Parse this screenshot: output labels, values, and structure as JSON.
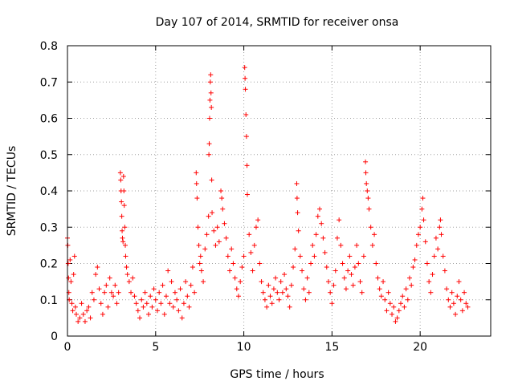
{
  "chart_data": {
    "type": "scatter",
    "title": "Day 107 of 2014, SRMTID for receiver onsa",
    "xlabel": "GPS time / hours",
    "ylabel": "SRMTID / TECUs",
    "xlim": [
      0,
      24
    ],
    "ylim": [
      0,
      0.8
    ],
    "xticks": [
      0,
      5,
      10,
      15,
      20
    ],
    "xtick_labels": [
      "0",
      "5",
      "10",
      "15",
      "20"
    ],
    "yticks": [
      0,
      0.1,
      0.2,
      0.3,
      0.4,
      0.5,
      0.6,
      0.7,
      0.8
    ],
    "ytick_labels": [
      "0",
      "0.1",
      "0.2",
      "0.3",
      "0.4",
      "0.5",
      "0.6",
      "0.7",
      "0.8"
    ],
    "grid": true,
    "marker": "plus",
    "color": "#ff0000",
    "series": [
      {
        "name": "SRMTID",
        "points": [
          [
            0.0,
            0.27
          ],
          [
            0.02,
            0.25
          ],
          [
            0.04,
            0.2
          ],
          [
            0.06,
            0.16
          ],
          [
            0.08,
            0.12
          ],
          [
            0.1,
            0.1
          ],
          [
            0.15,
            0.21
          ],
          [
            0.2,
            0.15
          ],
          [
            0.25,
            0.09
          ],
          [
            0.3,
            0.07
          ],
          [
            0.35,
            0.17
          ],
          [
            0.4,
            0.22
          ],
          [
            0.45,
            0.08
          ],
          [
            0.5,
            0.06
          ],
          [
            0.6,
            0.04
          ],
          [
            0.7,
            0.05
          ],
          [
            0.8,
            0.09
          ],
          [
            0.9,
            0.06
          ],
          [
            1.0,
            0.04
          ],
          [
            1.1,
            0.07
          ],
          [
            1.2,
            0.08
          ],
          [
            1.3,
            0.05
          ],
          [
            1.4,
            0.12
          ],
          [
            1.5,
            0.1
          ],
          [
            1.6,
            0.17
          ],
          [
            1.7,
            0.19
          ],
          [
            1.8,
            0.13
          ],
          [
            1.9,
            0.09
          ],
          [
            2.0,
            0.06
          ],
          [
            2.1,
            0.12
          ],
          [
            2.2,
            0.14
          ],
          [
            2.3,
            0.08
          ],
          [
            2.4,
            0.16
          ],
          [
            2.5,
            0.12
          ],
          [
            2.6,
            0.11
          ],
          [
            2.7,
            0.14
          ],
          [
            2.8,
            0.09
          ],
          [
            2.9,
            0.12
          ],
          [
            3.0,
            0.45
          ],
          [
            3.02,
            0.43
          ],
          [
            3.04,
            0.4
          ],
          [
            3.06,
            0.37
          ],
          [
            3.08,
            0.33
          ],
          [
            3.1,
            0.29
          ],
          [
            3.12,
            0.27
          ],
          [
            3.15,
            0.26
          ],
          [
            3.18,
            0.44
          ],
          [
            3.2,
            0.4
          ],
          [
            3.22,
            0.36
          ],
          [
            3.25,
            0.3
          ],
          [
            3.28,
            0.25
          ],
          [
            3.3,
            0.22
          ],
          [
            3.35,
            0.19
          ],
          [
            3.4,
            0.17
          ],
          [
            3.5,
            0.15
          ],
          [
            3.6,
            0.12
          ],
          [
            3.7,
            0.16
          ],
          [
            3.8,
            0.11
          ],
          [
            3.9,
            0.09
          ],
          [
            4.0,
            0.07
          ],
          [
            4.1,
            0.05
          ],
          [
            4.2,
            0.1
          ],
          [
            4.3,
            0.08
          ],
          [
            4.4,
            0.12
          ],
          [
            4.5,
            0.09
          ],
          [
            4.6,
            0.06
          ],
          [
            4.7,
            0.11
          ],
          [
            4.8,
            0.08
          ],
          [
            4.9,
            0.13
          ],
          [
            5.0,
            0.1
          ],
          [
            5.1,
            0.07
          ],
          [
            5.2,
            0.12
          ],
          [
            5.3,
            0.09
          ],
          [
            5.4,
            0.14
          ],
          [
            5.5,
            0.06
          ],
          [
            5.6,
            0.11
          ],
          [
            5.7,
            0.18
          ],
          [
            5.8,
            0.09
          ],
          [
            5.9,
            0.15
          ],
          [
            6.0,
            0.08
          ],
          [
            6.1,
            0.12
          ],
          [
            6.2,
            0.1
          ],
          [
            6.3,
            0.07
          ],
          [
            6.4,
            0.13
          ],
          [
            6.5,
            0.05
          ],
          [
            6.6,
            0.09
          ],
          [
            6.7,
            0.15
          ],
          [
            6.8,
            0.11
          ],
          [
            6.9,
            0.08
          ],
          [
            7.0,
            0.14
          ],
          [
            7.1,
            0.19
          ],
          [
            7.2,
            0.12
          ],
          [
            7.3,
            0.45
          ],
          [
            7.32,
            0.42
          ],
          [
            7.35,
            0.38
          ],
          [
            7.4,
            0.3
          ],
          [
            7.45,
            0.25
          ],
          [
            7.5,
            0.2
          ],
          [
            7.55,
            0.22
          ],
          [
            7.6,
            0.18
          ],
          [
            7.7,
            0.15
          ],
          [
            7.8,
            0.24
          ],
          [
            7.9,
            0.28
          ],
          [
            8.0,
            0.33
          ],
          [
            8.02,
            0.5
          ],
          [
            8.04,
            0.53
          ],
          [
            8.06,
            0.6
          ],
          [
            8.08,
            0.65
          ],
          [
            8.1,
            0.7
          ],
          [
            8.12,
            0.72
          ],
          [
            8.14,
            0.67
          ],
          [
            8.16,
            0.63
          ],
          [
            8.18,
            0.43
          ],
          [
            8.2,
            0.34
          ],
          [
            8.3,
            0.29
          ],
          [
            8.4,
            0.25
          ],
          [
            8.5,
            0.3
          ],
          [
            8.6,
            0.26
          ],
          [
            8.7,
            0.4
          ],
          [
            8.75,
            0.38
          ],
          [
            8.8,
            0.35
          ],
          [
            8.9,
            0.31
          ],
          [
            9.0,
            0.27
          ],
          [
            9.1,
            0.22
          ],
          [
            9.2,
            0.18
          ],
          [
            9.3,
            0.24
          ],
          [
            9.4,
            0.2
          ],
          [
            9.5,
            0.16
          ],
          [
            9.6,
            0.13
          ],
          [
            9.7,
            0.11
          ],
          [
            9.8,
            0.15
          ],
          [
            9.9,
            0.19
          ],
          [
            10.0,
            0.22
          ],
          [
            10.05,
            0.74
          ],
          [
            10.07,
            0.71
          ],
          [
            10.09,
            0.68
          ],
          [
            10.12,
            0.61
          ],
          [
            10.15,
            0.55
          ],
          [
            10.18,
            0.47
          ],
          [
            10.2,
            0.39
          ],
          [
            10.3,
            0.28
          ],
          [
            10.4,
            0.23
          ],
          [
            10.5,
            0.18
          ],
          [
            10.6,
            0.25
          ],
          [
            10.7,
            0.3
          ],
          [
            10.8,
            0.32
          ],
          [
            10.9,
            0.2
          ],
          [
            11.0,
            0.15
          ],
          [
            11.1,
            0.12
          ],
          [
            11.2,
            0.1
          ],
          [
            11.3,
            0.08
          ],
          [
            11.4,
            0.14
          ],
          [
            11.5,
            0.11
          ],
          [
            11.6,
            0.09
          ],
          [
            11.7,
            0.13
          ],
          [
            11.8,
            0.16
          ],
          [
            11.9,
            0.12
          ],
          [
            12.0,
            0.1
          ],
          [
            12.1,
            0.15
          ],
          [
            12.2,
            0.12
          ],
          [
            12.3,
            0.17
          ],
          [
            12.4,
            0.13
          ],
          [
            12.5,
            0.11
          ],
          [
            12.6,
            0.08
          ],
          [
            12.7,
            0.14
          ],
          [
            12.8,
            0.19
          ],
          [
            12.9,
            0.24
          ],
          [
            13.0,
            0.42
          ],
          [
            13.02,
            0.38
          ],
          [
            13.05,
            0.34
          ],
          [
            13.1,
            0.29
          ],
          [
            13.2,
            0.22
          ],
          [
            13.3,
            0.18
          ],
          [
            13.4,
            0.13
          ],
          [
            13.5,
            0.1
          ],
          [
            13.6,
            0.16
          ],
          [
            13.7,
            0.12
          ],
          [
            13.8,
            0.2
          ],
          [
            13.9,
            0.25
          ],
          [
            14.0,
            0.22
          ],
          [
            14.1,
            0.28
          ],
          [
            14.2,
            0.33
          ],
          [
            14.3,
            0.35
          ],
          [
            14.4,
            0.31
          ],
          [
            14.5,
            0.27
          ],
          [
            14.6,
            0.23
          ],
          [
            14.7,
            0.19
          ],
          [
            14.8,
            0.15
          ],
          [
            14.9,
            0.12
          ],
          [
            15.0,
            0.09
          ],
          [
            15.1,
            0.14
          ],
          [
            15.2,
            0.18
          ],
          [
            15.3,
            0.27
          ],
          [
            15.4,
            0.32
          ],
          [
            15.5,
            0.25
          ],
          [
            15.6,
            0.2
          ],
          [
            15.7,
            0.16
          ],
          [
            15.8,
            0.13
          ],
          [
            15.9,
            0.18
          ],
          [
            16.0,
            0.22
          ],
          [
            16.1,
            0.17
          ],
          [
            16.2,
            0.14
          ],
          [
            16.3,
            0.19
          ],
          [
            16.4,
            0.25
          ],
          [
            16.5,
            0.2
          ],
          [
            16.6,
            0.15
          ],
          [
            16.7,
            0.12
          ],
          [
            16.8,
            0.22
          ],
          [
            16.9,
            0.48
          ],
          [
            16.92,
            0.45
          ],
          [
            16.95,
            0.42
          ],
          [
            17.0,
            0.4
          ],
          [
            17.05,
            0.38
          ],
          [
            17.1,
            0.35
          ],
          [
            17.2,
            0.3
          ],
          [
            17.3,
            0.25
          ],
          [
            17.4,
            0.28
          ],
          [
            17.5,
            0.2
          ],
          [
            17.6,
            0.16
          ],
          [
            17.7,
            0.13
          ],
          [
            17.8,
            0.11
          ],
          [
            17.9,
            0.15
          ],
          [
            18.0,
            0.1
          ],
          [
            18.1,
            0.07
          ],
          [
            18.2,
            0.12
          ],
          [
            18.3,
            0.09
          ],
          [
            18.4,
            0.06
          ],
          [
            18.5,
            0.08
          ],
          [
            18.6,
            0.04
          ],
          [
            18.7,
            0.05
          ],
          [
            18.8,
            0.07
          ],
          [
            18.9,
            0.09
          ],
          [
            19.0,
            0.11
          ],
          [
            19.1,
            0.08
          ],
          [
            19.2,
            0.13
          ],
          [
            19.3,
            0.1
          ],
          [
            19.4,
            0.16
          ],
          [
            19.5,
            0.14
          ],
          [
            19.6,
            0.19
          ],
          [
            19.7,
            0.21
          ],
          [
            19.8,
            0.25
          ],
          [
            19.9,
            0.28
          ],
          [
            20.0,
            0.3
          ],
          [
            20.1,
            0.35
          ],
          [
            20.15,
            0.38
          ],
          [
            20.2,
            0.32
          ],
          [
            20.3,
            0.26
          ],
          [
            20.4,
            0.2
          ],
          [
            20.5,
            0.15
          ],
          [
            20.6,
            0.12
          ],
          [
            20.7,
            0.17
          ],
          [
            20.8,
            0.22
          ],
          [
            20.9,
            0.27
          ],
          [
            21.0,
            0.24
          ],
          [
            21.1,
            0.3
          ],
          [
            21.15,
            0.32
          ],
          [
            21.2,
            0.28
          ],
          [
            21.3,
            0.22
          ],
          [
            21.4,
            0.18
          ],
          [
            21.5,
            0.13
          ],
          [
            21.6,
            0.1
          ],
          [
            21.7,
            0.08
          ],
          [
            21.8,
            0.12
          ],
          [
            21.9,
            0.09
          ],
          [
            22.0,
            0.06
          ],
          [
            22.1,
            0.11
          ],
          [
            22.2,
            0.15
          ],
          [
            22.3,
            0.1
          ],
          [
            22.4,
            0.07
          ],
          [
            22.5,
            0.12
          ],
          [
            22.6,
            0.09
          ],
          [
            22.7,
            0.08
          ]
        ]
      }
    ]
  }
}
